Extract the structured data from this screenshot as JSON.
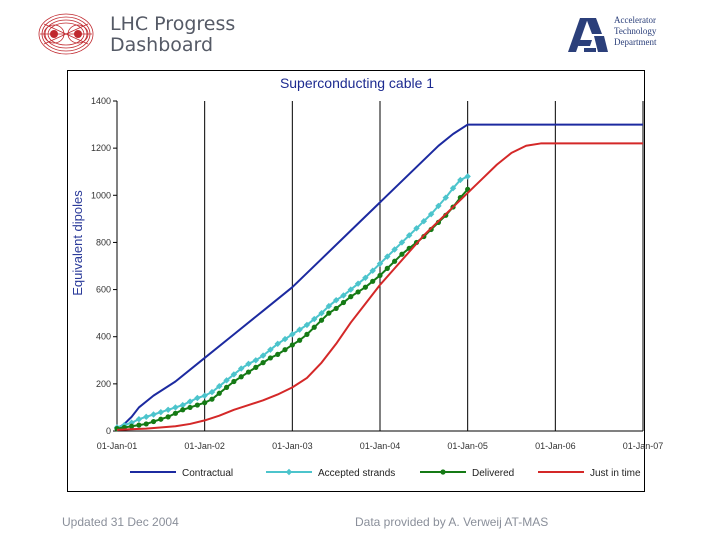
{
  "header": {
    "title_line1": "LHC Progress",
    "title_line2": "Dashboard",
    "dept_line1": "Accelerator",
    "dept_line2": "Technology",
    "dept_line3": "Department",
    "colors": {
      "title": "#555a66",
      "dept": "#2b3f7a",
      "lhc_logo": "#c0282e"
    }
  },
  "footer": {
    "updated": "Updated 31 Dec 2004",
    "provided": "Data provided by  A. Verweij   AT-MAS"
  },
  "chart_data": {
    "type": "line",
    "title": "Superconducting cable 1",
    "xlabel": "",
    "ylabel": "Equivalent dipoles",
    "xlim": [
      0,
      72
    ],
    "ylim": [
      0,
      1400
    ],
    "x_ticks": [
      {
        "value": 0,
        "label": "01-Jan-01"
      },
      {
        "value": 12,
        "label": "01-Jan-02"
      },
      {
        "value": 24,
        "label": "01-Jan-03"
      },
      {
        "value": 36,
        "label": "01-Jan-04"
      },
      {
        "value": 48,
        "label": "01-Jan-05"
      },
      {
        "value": 60,
        "label": "01-Jan-06"
      },
      {
        "value": 72,
        "label": "01-Jan-07"
      }
    ],
    "y_ticks": [
      {
        "value": 0,
        "label": "0"
      },
      {
        "value": 200,
        "label": "200"
      },
      {
        "value": 400,
        "label": "400"
      },
      {
        "value": 600,
        "label": "600"
      },
      {
        "value": 800,
        "label": "800"
      },
      {
        "value": 1000,
        "label": "1000"
      },
      {
        "value": 1200,
        "label": "1200"
      },
      {
        "value": 1400,
        "label": "1400"
      }
    ],
    "grid": {
      "vertical": true,
      "horizontal": false
    },
    "legend_position": "bottom",
    "series": [
      {
        "name": "Contractual",
        "color": "#1c2aa0",
        "marker": "none",
        "x": [
          0,
          1,
          2,
          3,
          5,
          8,
          12,
          16,
          20,
          24,
          28,
          32,
          36,
          40,
          44,
          46,
          48,
          60,
          72
        ],
        "y": [
          10,
          30,
          60,
          100,
          150,
          210,
          310,
          410,
          510,
          610,
          730,
          850,
          970,
          1090,
          1210,
          1260,
          1300,
          1300,
          1300
        ]
      },
      {
        "name": "Accepted strands",
        "color": "#4cc4cc",
        "marker": "diamond",
        "x": [
          0,
          1,
          2,
          3,
          4,
          5,
          6,
          7,
          8,
          9,
          10,
          11,
          12,
          13,
          14,
          15,
          16,
          17,
          18,
          19,
          20,
          21,
          22,
          23,
          24,
          25,
          26,
          27,
          28,
          29,
          30,
          31,
          32,
          33,
          34,
          35,
          36,
          37,
          38,
          39,
          40,
          41,
          42,
          43,
          44,
          45,
          46,
          47,
          48
        ],
        "y": [
          15,
          25,
          35,
          50,
          60,
          70,
          80,
          90,
          100,
          110,
          125,
          140,
          150,
          165,
          190,
          215,
          240,
          265,
          285,
          300,
          320,
          345,
          370,
          390,
          410,
          430,
          450,
          475,
          500,
          530,
          555,
          575,
          600,
          625,
          650,
          680,
          710,
          740,
          770,
          800,
          830,
          860,
          890,
          920,
          955,
          990,
          1030,
          1065,
          1080
        ]
      },
      {
        "name": "Delivered",
        "color": "#157a15",
        "marker": "circle",
        "x": [
          0,
          1,
          2,
          3,
          4,
          5,
          6,
          7,
          8,
          9,
          10,
          11,
          12,
          13,
          14,
          15,
          16,
          17,
          18,
          19,
          20,
          21,
          22,
          23,
          24,
          25,
          26,
          27,
          28,
          29,
          30,
          31,
          32,
          33,
          34,
          35,
          36,
          37,
          38,
          39,
          40,
          41,
          42,
          43,
          44,
          45,
          46,
          47,
          48
        ],
        "y": [
          10,
          15,
          20,
          25,
          30,
          40,
          50,
          60,
          75,
          90,
          100,
          110,
          120,
          135,
          160,
          185,
          210,
          230,
          250,
          270,
          290,
          310,
          325,
          345,
          365,
          385,
          410,
          440,
          470,
          500,
          520,
          545,
          570,
          590,
          610,
          635,
          660,
          690,
          720,
          750,
          775,
          800,
          825,
          855,
          885,
          915,
          950,
          990,
          1025
        ]
      },
      {
        "name": "Just in time",
        "color": "#d42828",
        "marker": "none",
        "x": [
          0,
          4,
          8,
          10,
          12,
          14,
          16,
          18,
          20,
          22,
          24,
          26,
          28,
          30,
          32,
          34,
          36,
          38,
          40,
          42,
          44,
          46,
          48,
          50,
          52,
          54,
          56,
          58,
          60,
          72
        ],
        "y": [
          5,
          10,
          20,
          30,
          45,
          65,
          90,
          110,
          130,
          155,
          185,
          225,
          290,
          370,
          460,
          540,
          620,
          690,
          760,
          830,
          890,
          950,
          1010,
          1070,
          1130,
          1180,
          1210,
          1220,
          1220,
          1220
        ]
      }
    ]
  }
}
